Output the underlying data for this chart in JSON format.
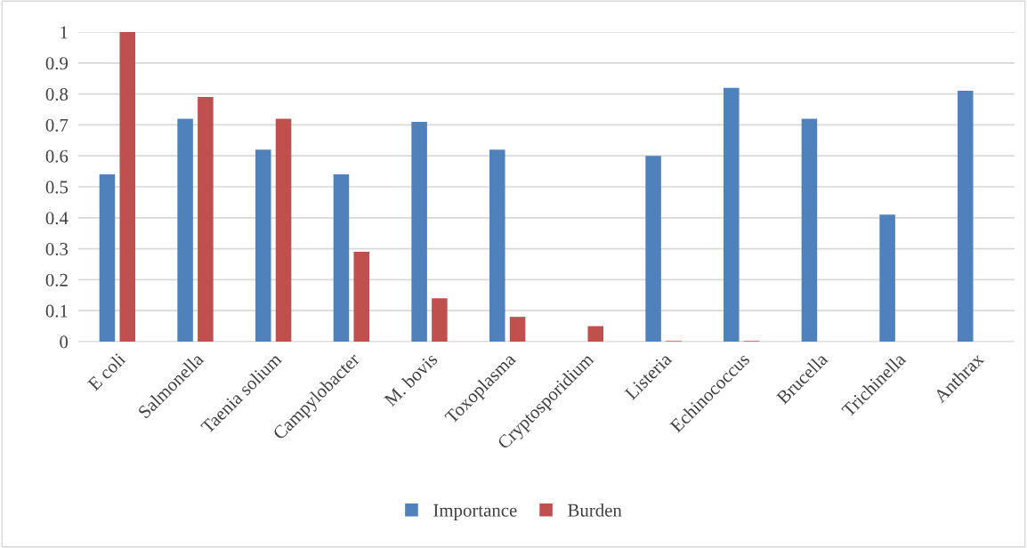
{
  "chart_data": {
    "type": "bar",
    "categories": [
      "E coli",
      "Salmonella",
      "Taenia solium",
      "Campylobacter",
      "M. bovis",
      "Toxoplasma",
      "Cryptosporidium",
      "Listeria",
      "Echinococcus",
      "Brucella",
      "Trichinella",
      "Anthrax"
    ],
    "series": [
      {
        "name": "Importance",
        "color": "#4f81bd",
        "values": [
          0.54,
          0.72,
          0.62,
          0.54,
          0.71,
          0.62,
          0,
          0.6,
          0.82,
          0.72,
          0.41,
          0.81
        ]
      },
      {
        "name": "Burden",
        "color": "#c0504d",
        "values": [
          1.0,
          0.79,
          0.72,
          0.29,
          0.14,
          0.08,
          0.05,
          0.002,
          0.002,
          0,
          0,
          0
        ]
      }
    ],
    "ylim": [
      0,
      1
    ],
    "yticks": [
      0,
      0.1,
      0.2,
      0.3,
      0.4,
      0.5,
      0.6,
      0.7,
      0.8,
      0.9,
      1
    ],
    "grid": "y",
    "legend": "bottom"
  }
}
